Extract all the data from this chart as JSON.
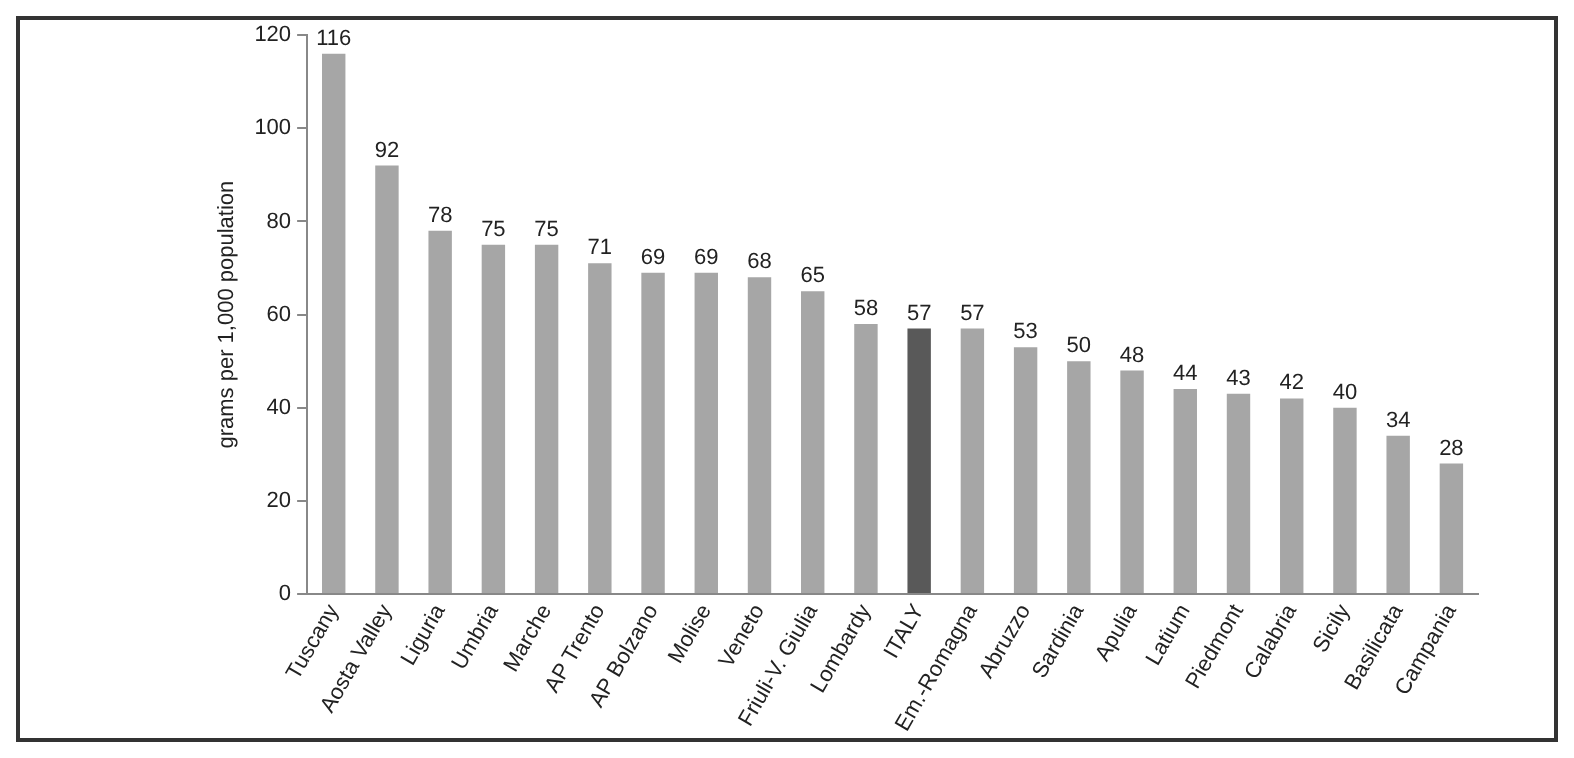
{
  "chart_data": {
    "type": "bar",
    "ylabel": "grams per 1,000 population",
    "categories": [
      "Tuscany",
      "Aosta Valley",
      "Liguria",
      "Umbria",
      "Marche",
      "AP Trento",
      "AP Bolzano",
      "Molise",
      "Veneto",
      "Friuli-V. Giulia",
      "Lombardy",
      "ITALY",
      "Em.-Romagna",
      "Abruzzo",
      "Sardinia",
      "Apulia",
      "Latium",
      "Piedmont",
      "Calabria",
      "Sicily",
      "Basilicata",
      "Campania"
    ],
    "values": [
      116,
      92,
      78,
      75,
      75,
      71,
      69,
      69,
      68,
      65,
      58,
      57,
      57,
      53,
      50,
      48,
      44,
      43,
      42,
      40,
      34,
      28
    ],
    "colors": [
      "#a6a6a6",
      "#a6a6a6",
      "#a6a6a6",
      "#a6a6a6",
      "#a6a6a6",
      "#a6a6a6",
      "#a6a6a6",
      "#a6a6a6",
      "#a6a6a6",
      "#a6a6a6",
      "#a6a6a6",
      "#595959",
      "#a6a6a6",
      "#a6a6a6",
      "#a6a6a6",
      "#a6a6a6",
      "#a6a6a6",
      "#a6a6a6",
      "#a6a6a6",
      "#a6a6a6",
      "#a6a6a6",
      "#a6a6a6"
    ],
    "ylim": [
      0,
      120
    ],
    "yticks": [
      0,
      20,
      40,
      60,
      80,
      100,
      120
    ],
    "grid": false,
    "legend": false,
    "data_labels": true
  }
}
